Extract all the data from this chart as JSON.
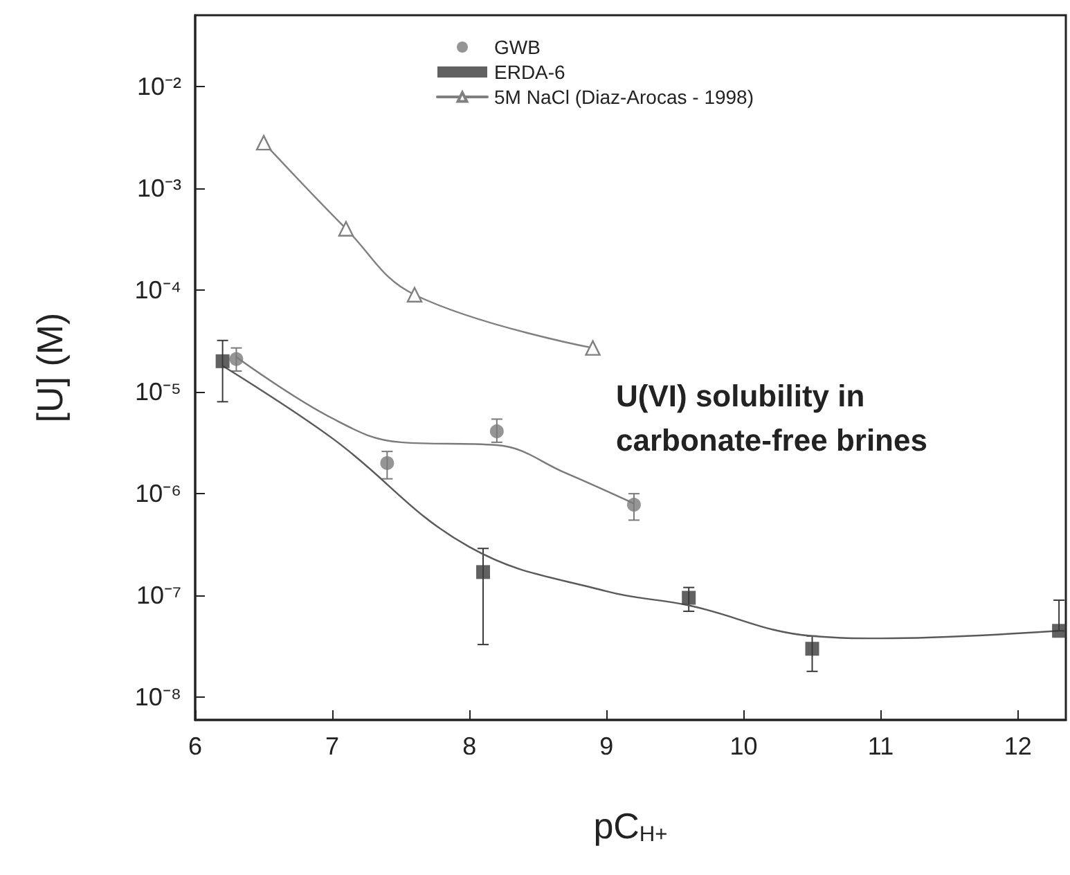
{
  "chart_data": {
    "type": "scatter",
    "xlabel": "pC$_{H+}$",
    "ylabel": "[U] (M)",
    "annotations": [
      "U(VI) solubility in\ncarbonate-free brines"
    ],
    "log": "y",
    "legend": "top",
    "grid": false,
    "xlim": [
      6,
      12.35
    ],
    "xticks": [
      6,
      7,
      8,
      9,
      10,
      11,
      12
    ],
    "ylim": [
      6e-09,
      0.05
    ],
    "yticks": [
      {
        "value": 1e-08,
        "label": "10⁻⁸"
      },
      {
        "value": 1e-07,
        "label": "10⁻⁷"
      },
      {
        "value": 1e-06,
        "label": "10⁻⁶"
      },
      {
        "value": 1e-05,
        "label": "10⁻⁵"
      },
      {
        "value": 0.0001,
        "label": "10⁻⁴"
      },
      {
        "value": 0.001,
        "label": "10⁻³"
      },
      {
        "value": 0.01,
        "label": "10⁻²"
      }
    ],
    "series": [
      {
        "name": "GWB",
        "marker": "circle",
        "color": "#7a7a7a",
        "x": [
          6.3,
          7.4,
          8.2,
          9.2
        ],
        "values": [
          2.1e-05,
          2e-06,
          4.1e-06,
          7.8e-07
        ],
        "errors": [
          [
            1.6e-05,
            2.7e-05
          ],
          [
            1.4e-06,
            2.6e-06
          ],
          [
            3.2e-06,
            5.4e-06
          ],
          [
            5.5e-07,
            1e-06
          ]
        ]
      },
      {
        "name": "ERDA-6",
        "marker": "square",
        "color": "#3a3a3a",
        "x": [
          6.2,
          8.1,
          9.6,
          10.5,
          12.3
        ],
        "values": [
          2e-05,
          1.7e-07,
          9.5e-08,
          3e-08,
          4.5e-08
        ],
        "errors": [
          [
            8e-06,
            3.2e-05
          ],
          [
            3.3e-08,
            2.9e-07
          ],
          [
            7e-08,
            1.2e-07
          ],
          [
            1.8e-08,
            4e-08
          ],
          [
            4.5e-08,
            9e-08
          ]
        ]
      },
      {
        "name": "5M NaCl (Diaz-Arocas - 1998)",
        "type": "line",
        "marker": "triangle",
        "color": "#808080",
        "x": [
          6.5,
          7.1,
          7.6,
          8.9
        ],
        "values": [
          0.0028,
          0.0004,
          9e-05,
          2.7e-05
        ]
      },
      {
        "type": "line",
        "marker": "none",
        "color": "#7a7a7a",
        "x": [
          6.3,
          7,
          7.5,
          8.2,
          8.7,
          9.2
        ],
        "values": [
          2.2e-05,
          5.5e-06,
          3.2e-06,
          3e-06,
          1.6e-06,
          8e-07
        ]
      },
      {
        "type": "line",
        "marker": "none",
        "color": "#5a5a5a",
        "x": [
          6.2,
          7,
          8,
          9,
          9.6,
          10.5,
          11,
          12.3
        ],
        "values": [
          1.8e-05,
          3.5e-06,
          3e-07,
          1.1e-07,
          8e-08,
          4e-08,
          3.8e-08,
          4.5e-08
        ]
      }
    ]
  }
}
